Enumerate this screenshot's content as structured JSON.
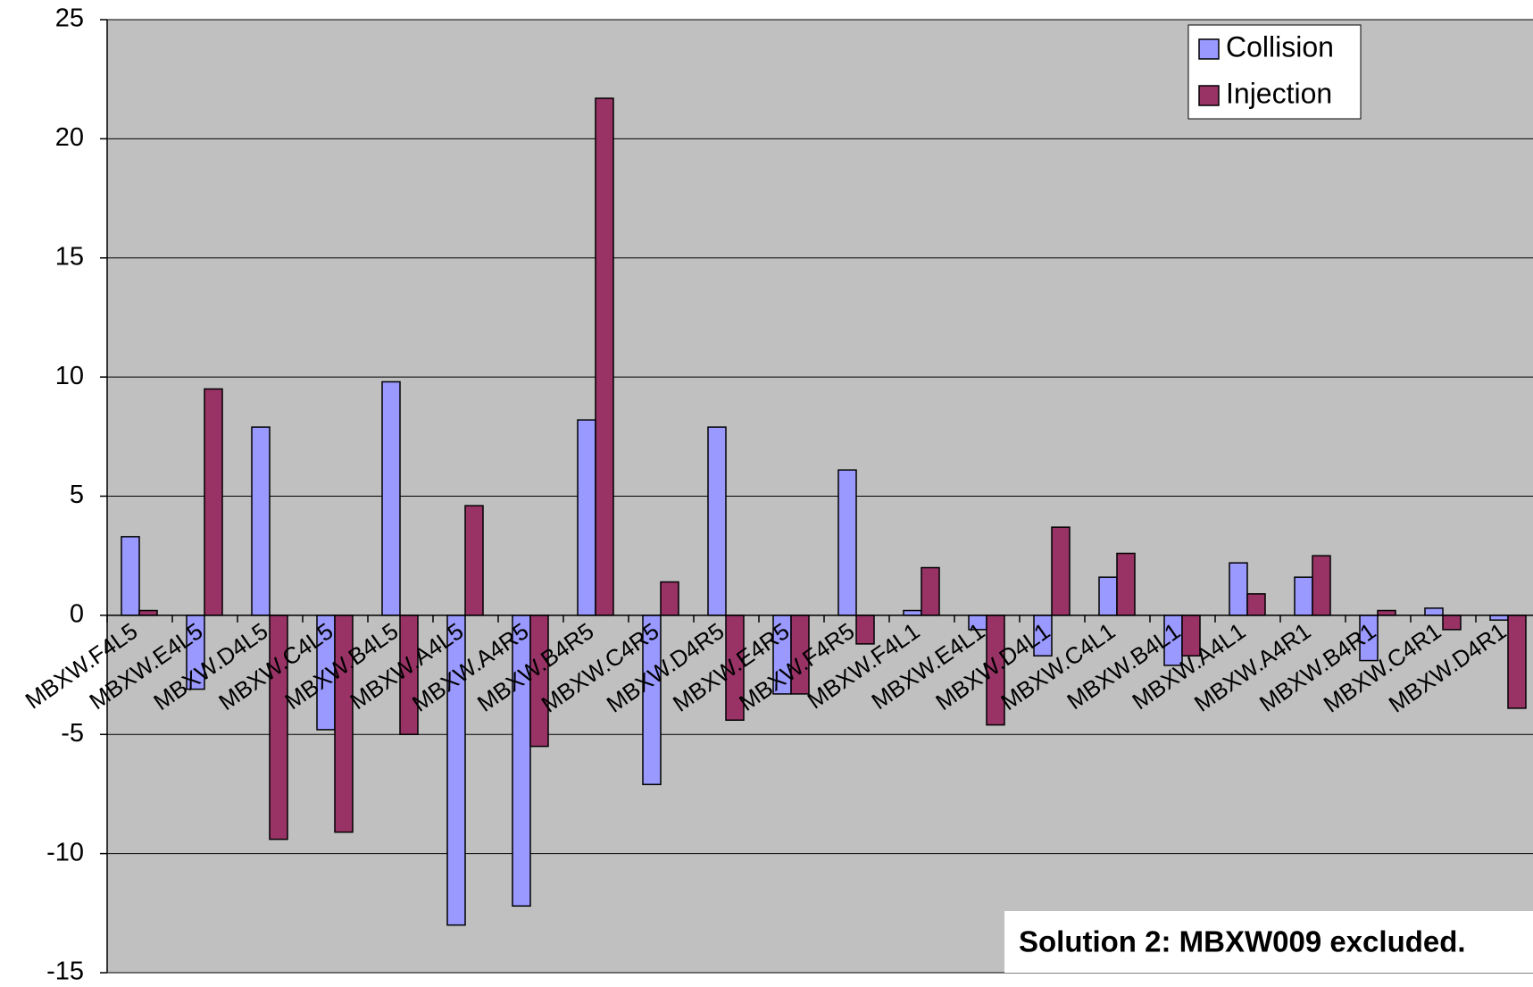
{
  "chart_data": {
    "type": "bar",
    "title": "",
    "xlabel": "",
    "ylabel": "",
    "ylim": [
      -15,
      25
    ],
    "yticks": [
      -15,
      -10,
      -5,
      0,
      5,
      10,
      15,
      20,
      25
    ],
    "grid": true,
    "legend_position": "top-right",
    "categories": [
      "MBXW.F4L5",
      "MBXW.E4L5",
      "MBXW.D4L5",
      "MBXW.C4L5",
      "MBXW.B4L5",
      "MBXW.A4L5",
      "MBXW.A4R5",
      "MBXW.B4R5",
      "MBXW.C4R5",
      "MBXW.D4R5",
      "MBXW.E4R5",
      "MBXW.F4R5",
      "MBXW.F4L1",
      "MBXW.E4L1",
      "MBXW.D4L1",
      "MBXW.C4L1",
      "MBXW.B4L1",
      "MBXW.A4L1",
      "MBXW.A4R1",
      "MBXW.B4R1",
      "MBXW.C4R1",
      "MBXW.D4R1"
    ],
    "series": [
      {
        "name": "Collision",
        "color": "#9999ff",
        "values": [
          3.3,
          -3.1,
          7.9,
          -4.8,
          9.8,
          -13.0,
          -12.2,
          8.2,
          -7.1,
          7.9,
          -3.3,
          6.1,
          0.2,
          -0.6,
          -1.7,
          1.6,
          -2.1,
          2.2,
          1.6,
          -1.9,
          0.3,
          -0.2
        ]
      },
      {
        "name": "Injection",
        "color": "#993366",
        "values": [
          0.2,
          9.5,
          -9.4,
          -9.1,
          -5.0,
          4.6,
          -5.5,
          21.7,
          1.4,
          -4.4,
          -3.3,
          -1.2,
          2.0,
          -4.6,
          3.7,
          2.6,
          -1.7,
          0.9,
          2.5,
          0.2,
          -0.6,
          -3.9
        ]
      }
    ],
    "annotation": "Solution 2: MBXW009 excluded.",
    "plot_background": "#c0c0c0"
  }
}
